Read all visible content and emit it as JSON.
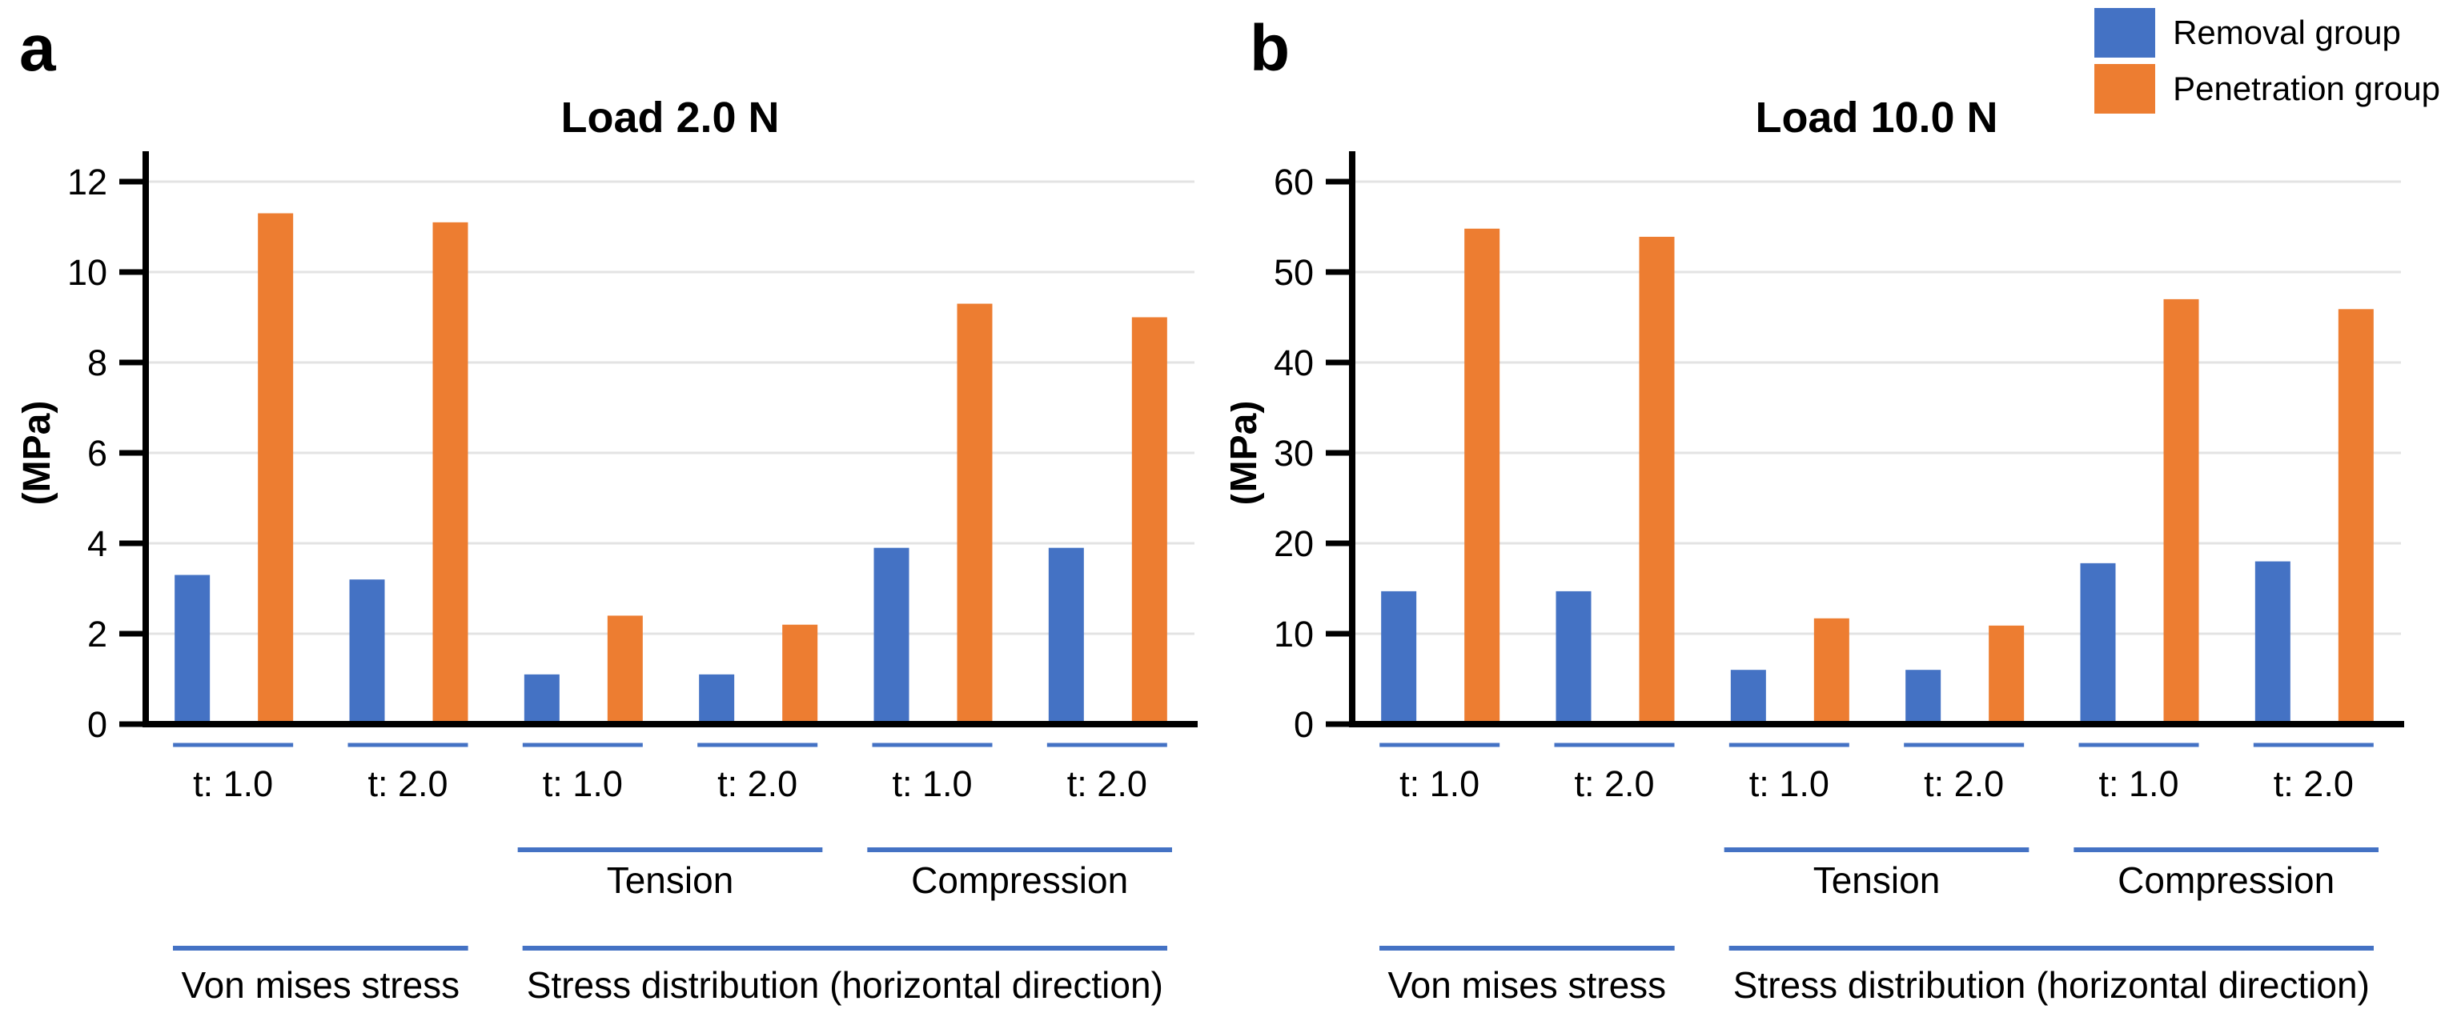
{
  "figure": {
    "legend": {
      "items": [
        {
          "icon": "swatch-removal",
          "label": "Removal group",
          "color": "#4472C4"
        },
        {
          "icon": "swatch-penetration",
          "label": "Penetration group",
          "color": "#ED7D31"
        }
      ]
    },
    "colors": {
      "removal_blue": "#4472C4",
      "penetration_orange": "#ED7D31",
      "category_rule_blue": "#4472C4",
      "gridline_gray": "#E3E3E3",
      "axis_black": "#000000"
    }
  },
  "chart_data": [
    {
      "type": "bar",
      "panel_label": "a",
      "title": "Load 2.0 N",
      "xlabel": "",
      "ylabel": "(MPa)",
      "ylim": [
        0,
        12
      ],
      "yticks": [
        0,
        2,
        4,
        6,
        8,
        10,
        12
      ],
      "grid": true,
      "legend_position": "figure-top-right",
      "categories": [
        "t: 1.0",
        "t: 2.0",
        "t: 1.0",
        "t: 2.0",
        "t: 1.0",
        "t: 2.0"
      ],
      "series": [
        {
          "name": "Removal group",
          "color": "#4472C4",
          "values": [
            3.3,
            3.2,
            1.1,
            1.1,
            3.9,
            3.9
          ]
        },
        {
          "name": "Penetration group",
          "color": "#ED7D31",
          "values": [
            11.3,
            11.1,
            2.4,
            2.2,
            9.3,
            9.0
          ]
        }
      ],
      "group_tiers": [
        {
          "label": "Tension",
          "span": [
            2,
            3
          ]
        },
        {
          "label": "Compression",
          "span": [
            4,
            5
          ]
        }
      ],
      "section_tiers": [
        {
          "label": "Von mises stress",
          "span": [
            0,
            1
          ]
        },
        {
          "label": "Stress distribution (horizontal direction)",
          "span": [
            2,
            5
          ]
        }
      ]
    },
    {
      "type": "bar",
      "panel_label": "b",
      "title": "Load 10.0 N",
      "xlabel": "",
      "ylabel": "(MPa)",
      "ylim": [
        0,
        60
      ],
      "yticks": [
        0,
        10,
        20,
        30,
        40,
        50,
        60
      ],
      "grid": true,
      "legend_position": "figure-top-right",
      "categories": [
        "t: 1.0",
        "t: 2.0",
        "t: 1.0",
        "t: 2.0",
        "t: 1.0",
        "t: 2.0"
      ],
      "series": [
        {
          "name": "Removal group",
          "color": "#4472C4",
          "values": [
            14.7,
            14.7,
            6.0,
            6.0,
            17.8,
            18.0
          ]
        },
        {
          "name": "Penetration group",
          "color": "#ED7D31",
          "values": [
            54.8,
            53.9,
            11.7,
            10.9,
            47.0,
            45.9
          ]
        }
      ],
      "group_tiers": [
        {
          "label": "Tension",
          "span": [
            2,
            3
          ]
        },
        {
          "label": "Compression",
          "span": [
            4,
            5
          ]
        }
      ],
      "section_tiers": [
        {
          "label": "Von mises stress",
          "span": [
            0,
            1
          ]
        },
        {
          "label": "Stress distribution (horizontal direction)",
          "span": [
            2,
            5
          ]
        }
      ]
    }
  ]
}
